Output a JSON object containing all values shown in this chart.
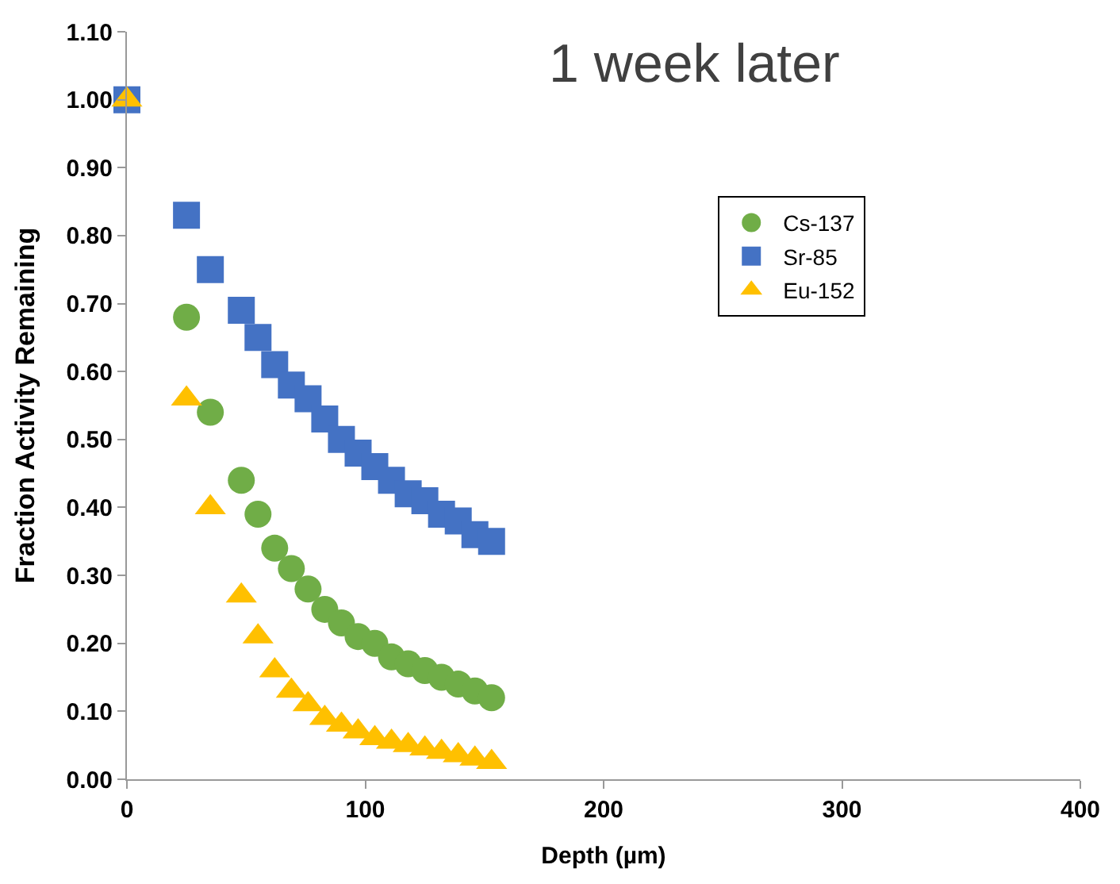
{
  "chart_data": {
    "type": "scatter",
    "title": "1 week later",
    "xlabel": "Depth (µm)",
    "ylabel": "Fraction Activity Remaining",
    "xlim": [
      0,
      400
    ],
    "xticks": [
      0,
      100,
      200,
      300,
      400
    ],
    "ylim": [
      0,
      1.1
    ],
    "yticks": [
      {
        "value": 0,
        "label": "0.00"
      },
      {
        "value": 0.1,
        "label": "0.10"
      },
      {
        "value": 0.2,
        "label": "0.20"
      },
      {
        "value": 0.3,
        "label": "0.30"
      },
      {
        "value": 0.4,
        "label": "0.40"
      },
      {
        "value": 0.5,
        "label": "0.50"
      },
      {
        "value": 0.6,
        "label": "0.60"
      },
      {
        "value": 0.7,
        "label": "0.70"
      },
      {
        "value": 0.8,
        "label": "0.80"
      },
      {
        "value": 0.9,
        "label": "0.90"
      },
      {
        "value": 1.0,
        "label": "1.00"
      },
      {
        "value": 1.1,
        "label": "1.10"
      }
    ],
    "legend": "top right",
    "series": [
      {
        "name": "Cs-137",
        "color": "#70ad47",
        "marker": "circle",
        "x": [
          25,
          35,
          48,
          55,
          62,
          69,
          76,
          83,
          90,
          97,
          104,
          111,
          118,
          125,
          132,
          139,
          146,
          153
        ],
        "values": [
          0.68,
          0.54,
          0.44,
          0.39,
          0.34,
          0.31,
          0.28,
          0.25,
          0.23,
          0.21,
          0.2,
          0.18,
          0.17,
          0.16,
          0.15,
          0.14,
          0.13,
          0.12
        ]
      },
      {
        "name": "Sr-85",
        "color": "#4472c4",
        "marker": "square",
        "x": [
          0,
          25,
          35,
          48,
          55,
          62,
          69,
          76,
          83,
          90,
          97,
          104,
          111,
          118,
          125,
          132,
          139,
          146,
          153
        ],
        "values": [
          1.0,
          0.83,
          0.75,
          0.69,
          0.65,
          0.61,
          0.58,
          0.56,
          0.53,
          0.5,
          0.48,
          0.46,
          0.44,
          0.42,
          0.41,
          0.39,
          0.38,
          0.36,
          0.35
        ]
      },
      {
        "name": "Eu-152",
        "color": "#ffc000",
        "marker": "triangle",
        "x": [
          0,
          25,
          35,
          48,
          55,
          62,
          69,
          76,
          83,
          90,
          97,
          104,
          111,
          118,
          125,
          132,
          139,
          146,
          153
        ],
        "values": [
          1.0,
          0.56,
          0.4,
          0.27,
          0.21,
          0.16,
          0.13,
          0.11,
          0.09,
          0.08,
          0.07,
          0.06,
          0.055,
          0.05,
          0.045,
          0.04,
          0.035,
          0.03,
          0.025
        ]
      }
    ]
  }
}
